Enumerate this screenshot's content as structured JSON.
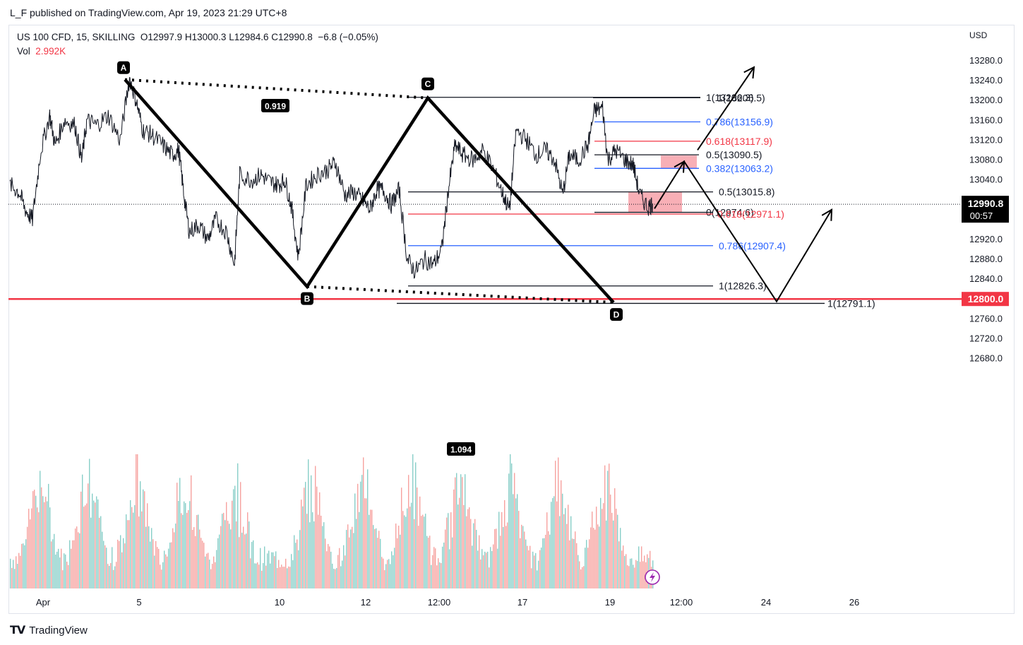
{
  "publisher": "L_F published on TradingView.com, Apr 19, 2023 21:29 UTC+8",
  "header": {
    "symbol": "US 100 CFD, 15, SKILLING",
    "ohlc": "O12997.9  H13000.3  L12984.6  C12990.8",
    "change": "−6.8 (−0.05%)",
    "vol_label": "Vol",
    "vol_value": "2.992K"
  },
  "currency": "USD",
  "footer": {
    "logo_icon": "tradingview-logo-icon",
    "brand": "TradingView"
  },
  "colors": {
    "up": "#26a69a",
    "down": "#ef5350",
    "fib_black": "#131722",
    "fib_blue": "#2962ff",
    "fib_red": "#f23645",
    "zone": "#f7a1a9"
  },
  "chart_data": {
    "type": "line",
    "symbol": "US 100 CFD",
    "interval": "15",
    "yaxis": {
      "ticks": [
        13280.0,
        13240.0,
        13200.0,
        13160.0,
        13120.0,
        13080.0,
        13040.0,
        13000.0,
        12960.0,
        12920.0,
        12880.0,
        12840.0,
        12800.0,
        12760.0,
        12720.0,
        12680.0
      ],
      "tick_labels": [
        "13280.0",
        "13240.0",
        "13200.0",
        "13160.0",
        "13120.0",
        "13080.0",
        "13040.0",
        "13000.0",
        "12960.0",
        "12920.0",
        "12880.0",
        "12840.0",
        "12800.0",
        "12760.0",
        "12720.0",
        "12680.0"
      ],
      "range": [
        12640,
        13322
      ]
    },
    "xaxis": {
      "tick_labels": [
        "Apr",
        "5",
        "10",
        "12",
        "12:00",
        "17",
        "19",
        "12:00",
        "24",
        "26"
      ]
    },
    "last_price": {
      "value": 12990.8,
      "label": "12990.8",
      "countdown": "00:57"
    },
    "key_level": {
      "value": 12800.0,
      "label": "12800.0"
    },
    "price_series": [
      [
        0,
        13030
      ],
      [
        0.7,
        13015
      ],
      [
        1.2,
        12978
      ],
      [
        1.7,
        12960
      ],
      [
        2.3,
        13095
      ],
      [
        3,
        13170
      ],
      [
        3.4,
        13110
      ],
      [
        4.1,
        13160
      ],
      [
        4.9,
        13150
      ],
      [
        5.4,
        13080
      ],
      [
        5.8,
        13160
      ],
      [
        6.5,
        13150
      ],
      [
        7.4,
        13170
      ],
      [
        8.3,
        13120
      ],
      [
        9.0,
        13245
      ],
      [
        9.5,
        13200
      ],
      [
        10.0,
        13140
      ],
      [
        10.7,
        13130
      ],
      [
        11.5,
        13110
      ],
      [
        12.2,
        13090
      ],
      [
        12.7,
        13100
      ],
      [
        13.1,
        13010
      ],
      [
        13.5,
        12935
      ],
      [
        14.2,
        12950
      ],
      [
        14.9,
        12920
      ],
      [
        15.5,
        12960
      ],
      [
        16.3,
        12935
      ],
      [
        16.9,
        12870
      ],
      [
        17.3,
        13050
      ],
      [
        18.2,
        13040
      ],
      [
        18.9,
        13050
      ],
      [
        19.6,
        13035
      ],
      [
        20.2,
        13030
      ],
      [
        20.7,
        13040
      ],
      [
        21.2,
        12985
      ],
      [
        21.7,
        12885
      ],
      [
        22.3,
        13030
      ],
      [
        23.1,
        13050
      ],
      [
        23.9,
        13060
      ],
      [
        24.5,
        13075
      ],
      [
        25.2,
        13010
      ],
      [
        25.9,
        13015
      ],
      [
        26.5,
        13000
      ],
      [
        27.1,
        12980
      ],
      [
        27.6,
        13020
      ],
      [
        28.1,
        13020
      ],
      [
        28.7,
        12990
      ],
      [
        29.3,
        13020
      ],
      [
        29.9,
        12880
      ],
      [
        30.5,
        12855
      ],
      [
        31.2,
        12880
      ],
      [
        31.9,
        12870
      ],
      [
        32.5,
        12900
      ],
      [
        33.0,
        13020
      ],
      [
        33.5,
        13110
      ],
      [
        34.1,
        13090
      ],
      [
        34.9,
        13080
      ],
      [
        35.6,
        13100
      ],
      [
        36.4,
        13060
      ],
      [
        37.1,
        13010
      ],
      [
        37.6,
        12980
      ],
      [
        38.1,
        13140
      ],
      [
        38.9,
        13120
      ],
      [
        39.6,
        13090
      ],
      [
        40.3,
        13100
      ],
      [
        41.0,
        13080
      ],
      [
        41.6,
        13010
      ],
      [
        42.1,
        13090
      ],
      [
        42.8,
        13080
      ],
      [
        43.5,
        13110
      ],
      [
        44.0,
        13180
      ],
      [
        44.6,
        13185
      ],
      [
        45.0,
        13080
      ],
      [
        45.6,
        13100
      ],
      [
        46.3,
        13080
      ],
      [
        46.9,
        13070
      ],
      [
        47.4,
        13010
      ],
      [
        48.0,
        12985
      ],
      [
        48.4,
        12992
      ]
    ],
    "harmonic_pattern": {
      "points": [
        {
          "label": "A",
          "value": 13242
        },
        {
          "label": "B",
          "value": 12825
        },
        {
          "label": "C",
          "value": 13205
        },
        {
          "label": "D",
          "value": 12793
        }
      ],
      "ratios": [
        "0.919",
        "1.094"
      ]
    },
    "fib_levels": [
      {
        "label": "1(13206.3)",
        "value": 13206.3,
        "color": "black"
      },
      {
        "label": "1(13205.5)",
        "value": 13205.5,
        "color": "black"
      },
      {
        "label": "0.786(13156.9)",
        "value": 13156.9,
        "color": "blue"
      },
      {
        "label": "0.618(13117.9)",
        "value": 13117.9,
        "color": "red"
      },
      {
        "label": "0.5(13090.5)",
        "value": 13090.5,
        "color": "black"
      },
      {
        "label": "0.382(13063.2)",
        "value": 13063.2,
        "color": "blue"
      },
      {
        "label": "0.5(13015.8)",
        "value": 13015.8,
        "color": "black"
      },
      {
        "label": "0(12974.6)",
        "value": 12974.6,
        "color": "black"
      },
      {
        "label": "0.618(12971.1)",
        "value": 12971.1,
        "color": "red"
      },
      {
        "label": "0.786(12907.4)",
        "value": 12907.4,
        "color": "blue"
      },
      {
        "label": "1(12826.3)",
        "value": 12826.3,
        "color": "black"
      },
      {
        "label": "1(12791.1)",
        "value": 12791.1,
        "color": "black"
      }
    ],
    "zones": [
      {
        "from": 13063,
        "to": 13089
      },
      {
        "from": 12974,
        "to": 13015
      }
    ],
    "projection_paths": [
      [
        12982,
        13077,
        12795,
        12980
      ],
      [
        13100,
        13267
      ]
    ]
  }
}
